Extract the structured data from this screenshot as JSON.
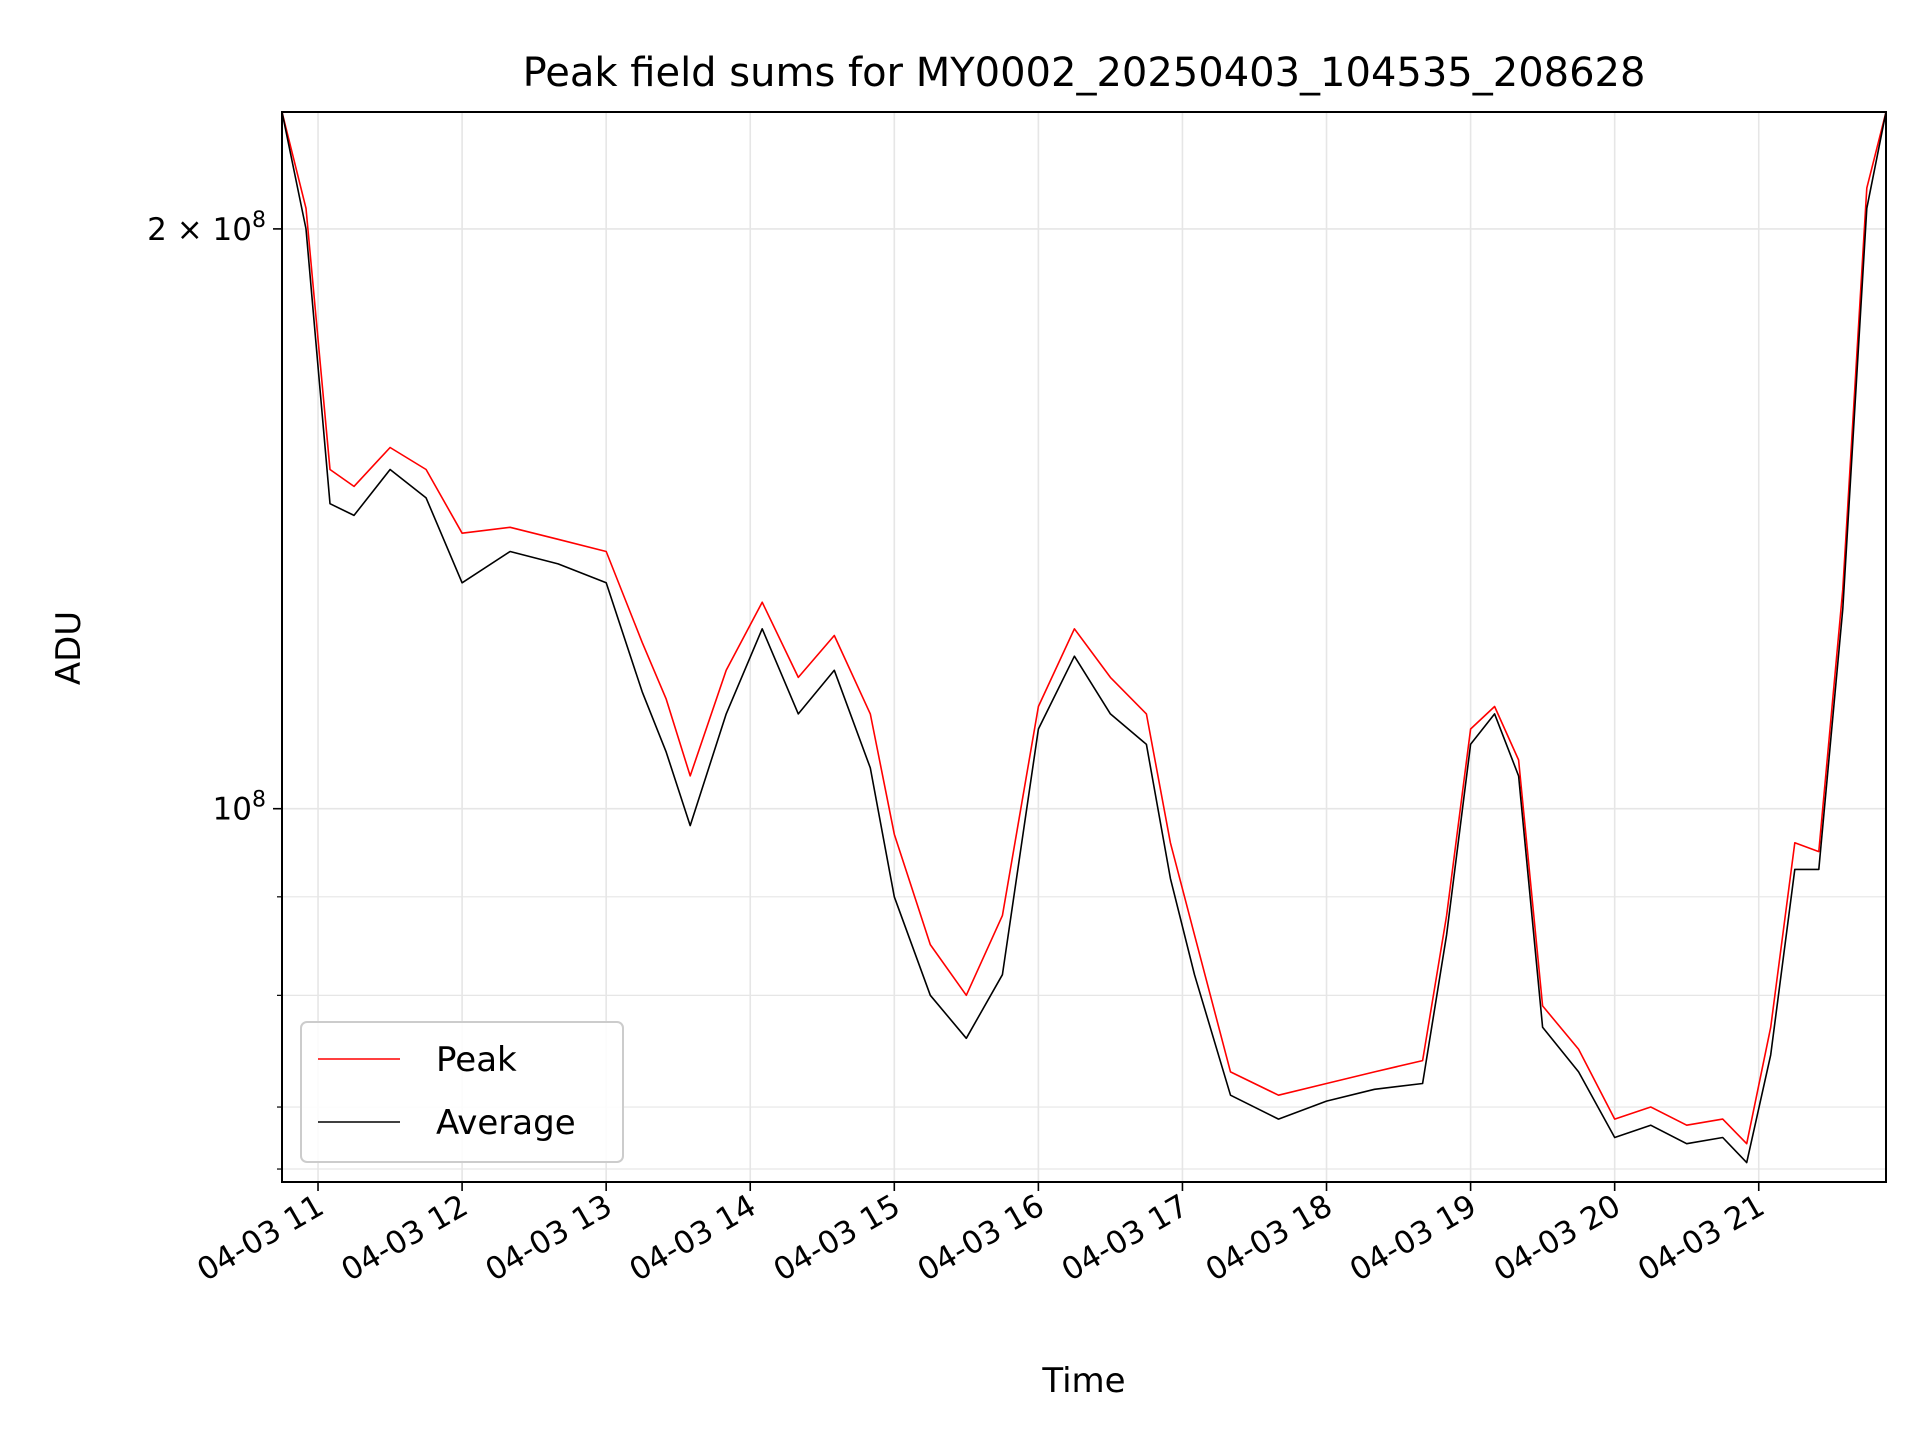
{
  "chart_data": {
    "type": "line",
    "title": "Peak field sums for MY0002_20250403_104535_208628",
    "xlabel": "Time",
    "ylabel": "ADU",
    "yscale": "log",
    "grid": true,
    "legend_position": "lower-left",
    "xlim": [
      "2025-04-03 10:45",
      "2025-04-03 21:53"
    ],
    "ylim": [
      64000000.0,
      230000000.0
    ],
    "x_tick_labels": [
      "04-03 11",
      "04-03 12",
      "04-03 13",
      "04-03 14",
      "04-03 15",
      "04-03 16",
      "04-03 17",
      "04-03 18",
      "04-03 19",
      "04-03 20",
      "04-03 21"
    ],
    "x_tick_times": [
      "2025-04-03 11:00",
      "2025-04-03 12:00",
      "2025-04-03 13:00",
      "2025-04-03 14:00",
      "2025-04-03 15:00",
      "2025-04-03 16:00",
      "2025-04-03 17:00",
      "2025-04-03 18:00",
      "2025-04-03 19:00",
      "2025-04-03 20:00",
      "2025-04-03 21:00"
    ],
    "y_tick_labels": [
      {
        "base": "2 × 10",
        "exp": "8",
        "value": 200000000
      },
      {
        "base": "10",
        "exp": "8",
        "value": 100000000
      }
    ],
    "y_minor_ticks": [
      65000000,
      70000000,
      80000000,
      90000000
    ],
    "series": [
      {
        "name": "Peak",
        "color": "#ff0000",
        "x": [
          "2025-04-03 10:45",
          "2025-04-03 10:55",
          "2025-04-03 11:05",
          "2025-04-03 11:15",
          "2025-04-03 11:30",
          "2025-04-03 11:45",
          "2025-04-03 12:00",
          "2025-04-03 12:20",
          "2025-04-03 12:40",
          "2025-04-03 13:00",
          "2025-04-03 13:15",
          "2025-04-03 13:25",
          "2025-04-03 13:35",
          "2025-04-03 13:50",
          "2025-04-03 14:05",
          "2025-04-03 14:20",
          "2025-04-03 14:35",
          "2025-04-03 14:50",
          "2025-04-03 15:00",
          "2025-04-03 15:15",
          "2025-04-03 15:30",
          "2025-04-03 15:45",
          "2025-04-03 16:00",
          "2025-04-03 16:15",
          "2025-04-03 16:30",
          "2025-04-03 16:45",
          "2025-04-03 16:55",
          "2025-04-03 17:05",
          "2025-04-03 17:20",
          "2025-04-03 17:40",
          "2025-04-03 18:00",
          "2025-04-03 18:20",
          "2025-04-03 18:40",
          "2025-04-03 18:50",
          "2025-04-03 19:00",
          "2025-04-03 19:10",
          "2025-04-03 19:20",
          "2025-04-03 19:30",
          "2025-04-03 19:45",
          "2025-04-03 20:00",
          "2025-04-03 20:15",
          "2025-04-03 20:30",
          "2025-04-03 20:45",
          "2025-04-03 20:55",
          "2025-04-03 21:05",
          "2025-04-03 21:15",
          "2025-04-03 21:25",
          "2025-04-03 21:35",
          "2025-04-03 21:45",
          "2025-04-03 21:53"
        ],
        "values": [
          230000000.0,
          205000000.0,
          150000000.0,
          147000000.0,
          154000000.0,
          150000000.0,
          139000000.0,
          140000000.0,
          138000000.0,
          136000000.0,
          122000000.0,
          114000000.0,
          104000000.0,
          118000000.0,
          128000000.0,
          117000000.0,
          123000000.0,
          112000000.0,
          97000000.0,
          85000000.0,
          80000000.0,
          88000000.0,
          113000000.0,
          124000000.0,
          117000000.0,
          112000000.0,
          96000000.0,
          86000000.0,
          73000000.0,
          71000000.0,
          72000000.0,
          73000000.0,
          74000000.0,
          88000000.0,
          110000000.0,
          113000000.0,
          106000000.0,
          79000000.0,
          75000000.0,
          69000000.0,
          70000000.0,
          68500000.0,
          69000000.0,
          67000000.0,
          77000000.0,
          96000000.0,
          95000000.0,
          130000000.0,
          210000000.0,
          230000000.0
        ]
      },
      {
        "name": "Average",
        "color": "#000000",
        "x": [
          "2025-04-03 10:45",
          "2025-04-03 10:55",
          "2025-04-03 11:05",
          "2025-04-03 11:15",
          "2025-04-03 11:30",
          "2025-04-03 11:45",
          "2025-04-03 12:00",
          "2025-04-03 12:20",
          "2025-04-03 12:40",
          "2025-04-03 13:00",
          "2025-04-03 13:15",
          "2025-04-03 13:25",
          "2025-04-03 13:35",
          "2025-04-03 13:50",
          "2025-04-03 14:05",
          "2025-04-03 14:20",
          "2025-04-03 14:35",
          "2025-04-03 14:50",
          "2025-04-03 15:00",
          "2025-04-03 15:15",
          "2025-04-03 15:30",
          "2025-04-03 15:45",
          "2025-04-03 16:00",
          "2025-04-03 16:15",
          "2025-04-03 16:30",
          "2025-04-03 16:45",
          "2025-04-03 16:55",
          "2025-04-03 17:05",
          "2025-04-03 17:20",
          "2025-04-03 17:40",
          "2025-04-03 18:00",
          "2025-04-03 18:20",
          "2025-04-03 18:40",
          "2025-04-03 18:50",
          "2025-04-03 19:00",
          "2025-04-03 19:10",
          "2025-04-03 19:20",
          "2025-04-03 19:30",
          "2025-04-03 19:45",
          "2025-04-03 20:00",
          "2025-04-03 20:15",
          "2025-04-03 20:30",
          "2025-04-03 20:45",
          "2025-04-03 20:55",
          "2025-04-03 21:05",
          "2025-04-03 21:15",
          "2025-04-03 21:25",
          "2025-04-03 21:35",
          "2025-04-03 21:45",
          "2025-04-03 21:53"
        ],
        "values": [
          230000000.0,
          200000000.0,
          144000000.0,
          142000000.0,
          150000000.0,
          145000000.0,
          131000000.0,
          136000000.0,
          134000000.0,
          131000000.0,
          115000000.0,
          107000000.0,
          98000000.0,
          112000000.0,
          124000000.0,
          112000000.0,
          118000000.0,
          105000000.0,
          90000000.0,
          80000000.0,
          76000000.0,
          82000000.0,
          110000000.0,
          120000000.0,
          112000000.0,
          108000000.0,
          92000000.0,
          82000000.0,
          71000000.0,
          69000000.0,
          70500000.0,
          71500000.0,
          72000000.0,
          86000000.0,
          108000000.0,
          112000000.0,
          104000000.0,
          77000000.0,
          73000000.0,
          67500000.0,
          68500000.0,
          67000000.0,
          67500000.0,
          65500000.0,
          74500000.0,
          93000000.0,
          93000000.0,
          127000000.0,
          205000000.0,
          230000000.0
        ]
      }
    ],
    "legend": [
      "Peak",
      "Average"
    ]
  }
}
